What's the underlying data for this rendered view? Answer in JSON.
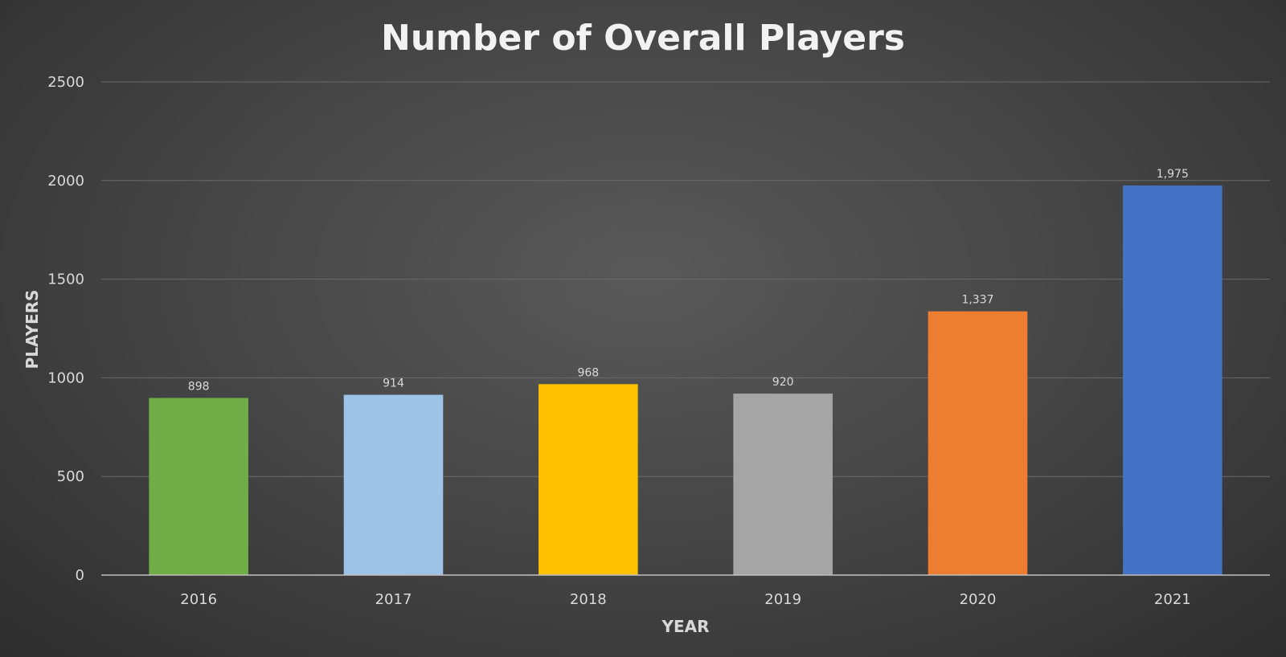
{
  "chart_data": {
    "type": "bar",
    "title": "Number of Overall Players",
    "xlabel": "YEAR",
    "ylabel": "PLAYERS",
    "categories": [
      "2016",
      "2017",
      "2018",
      "2019",
      "2020",
      "2021"
    ],
    "values": [
      898,
      914,
      968,
      920,
      1337,
      1975
    ],
    "data_labels": [
      "898",
      "914",
      "968",
      "920",
      "1,337",
      "1,975"
    ],
    "colors": [
      "#70ad47",
      "#9dc3e6",
      "#ffc000",
      "#a5a5a5",
      "#ed7d31",
      "#4472c4"
    ],
    "ylim": [
      0,
      2500
    ],
    "yticks": [
      "0",
      "500",
      "1000",
      "1500",
      "2000",
      "2500"
    ],
    "grid": true,
    "legend": "none"
  }
}
